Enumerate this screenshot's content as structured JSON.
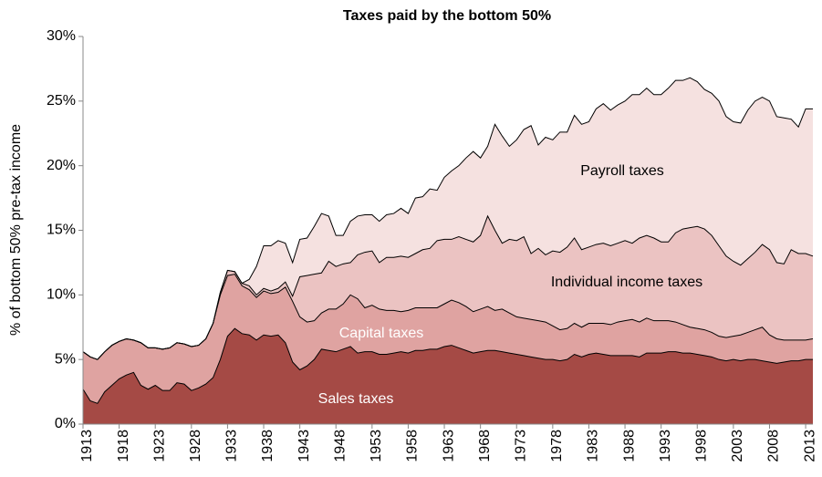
{
  "chart_data": {
    "type": "stacked_area",
    "title": "Taxes paid by the bottom 50%",
    "y_label": "% of bottom 50% pre-tax income",
    "x": [
      1913,
      1914,
      1915,
      1916,
      1917,
      1918,
      1919,
      1920,
      1921,
      1922,
      1923,
      1924,
      1925,
      1926,
      1927,
      1928,
      1929,
      1930,
      1931,
      1932,
      1933,
      1934,
      1935,
      1936,
      1937,
      1938,
      1939,
      1940,
      1941,
      1942,
      1943,
      1944,
      1945,
      1946,
      1947,
      1948,
      1949,
      1950,
      1951,
      1952,
      1953,
      1954,
      1955,
      1956,
      1957,
      1958,
      1959,
      1960,
      1961,
      1962,
      1963,
      1964,
      1965,
      1966,
      1967,
      1968,
      1969,
      1970,
      1971,
      1972,
      1973,
      1974,
      1975,
      1976,
      1977,
      1978,
      1979,
      1980,
      1981,
      1982,
      1983,
      1984,
      1985,
      1986,
      1987,
      1988,
      1989,
      1990,
      1991,
      1992,
      1993,
      1994,
      1995,
      1996,
      1997,
      1998,
      1999,
      2000,
      2001,
      2002,
      2003,
      2004,
      2005,
      2006,
      2007,
      2008,
      2009,
      2010,
      2011,
      2012,
      2013,
      2014
    ],
    "xlim": [
      1913,
      2014
    ],
    "xticks": [
      1913,
      1918,
      1923,
      1928,
      1933,
      1938,
      1943,
      1948,
      1953,
      1958,
      1963,
      1968,
      1973,
      1978,
      1983,
      1988,
      1993,
      1998,
      2003,
      2008,
      2013
    ],
    "ylim": [
      0,
      30
    ],
    "yticks": [
      {
        "value": 0,
        "label": "0%"
      },
      {
        "value": 5,
        "label": "5%"
      },
      {
        "value": 10,
        "label": "10%"
      },
      {
        "value": 15,
        "label": "15%"
      },
      {
        "value": 20,
        "label": "20%"
      },
      {
        "value": 25,
        "label": "25%"
      },
      {
        "value": 30,
        "label": "30%"
      }
    ],
    "grid": false,
    "series": [
      {
        "name": "Sales taxes",
        "color": "#a54a45",
        "label_color": "#ffffff",
        "values": [
          2.7,
          1.8,
          1.6,
          2.5,
          3.0,
          3.5,
          3.8,
          4.0,
          3.0,
          2.7,
          3.0,
          2.6,
          2.6,
          3.2,
          3.1,
          2.6,
          2.8,
          3.1,
          3.6,
          5.0,
          6.8,
          7.4,
          7.0,
          6.9,
          6.5,
          6.9,
          6.8,
          6.9,
          6.3,
          4.8,
          4.2,
          4.5,
          5.0,
          5.8,
          5.7,
          5.6,
          5.8,
          6.0,
          5.5,
          5.6,
          5.6,
          5.4,
          5.4,
          5.5,
          5.6,
          5.5,
          5.7,
          5.7,
          5.8,
          5.8,
          6.0,
          6.1,
          5.9,
          5.7,
          5.5,
          5.6,
          5.7,
          5.7,
          5.6,
          5.5,
          5.4,
          5.3,
          5.2,
          5.1,
          5.0,
          5.0,
          4.9,
          5.0,
          5.4,
          5.2,
          5.4,
          5.5,
          5.4,
          5.3,
          5.3,
          5.3,
          5.3,
          5.2,
          5.5,
          5.5,
          5.5,
          5.6,
          5.6,
          5.5,
          5.5,
          5.4,
          5.3,
          5.2,
          5.0,
          4.9,
          5.0,
          4.9,
          5.0,
          5.0,
          4.9,
          4.8,
          4.7,
          4.8,
          4.9,
          4.9,
          5.0,
          5.0
        ]
      },
      {
        "name": "Capital taxes",
        "color": "#dfa3a1",
        "label_color": "#ffffff",
        "values": [
          2.9,
          3.4,
          3.4,
          3.1,
          3.1,
          2.9,
          2.8,
          2.5,
          3.3,
          3.2,
          2.9,
          3.2,
          3.3,
          3.1,
          3.1,
          3.4,
          3.3,
          3.5,
          4.2,
          5.0,
          4.7,
          4.2,
          3.7,
          3.5,
          3.3,
          3.4,
          3.3,
          3.3,
          4.3,
          4.7,
          4.1,
          3.4,
          3.0,
          2.8,
          3.2,
          3.3,
          3.5,
          4.0,
          4.2,
          3.4,
          3.6,
          3.5,
          3.4,
          3.3,
          3.1,
          3.3,
          3.3,
          3.3,
          3.2,
          3.2,
          3.3,
          3.5,
          3.5,
          3.4,
          3.2,
          3.3,
          3.4,
          3.1,
          3.3,
          3.1,
          2.9,
          2.9,
          2.9,
          2.9,
          2.9,
          2.6,
          2.4,
          2.4,
          2.4,
          2.3,
          2.4,
          2.3,
          2.4,
          2.4,
          2.6,
          2.7,
          2.8,
          2.7,
          2.7,
          2.5,
          2.5,
          2.4,
          2.3,
          2.2,
          2.0,
          2.0,
          2.0,
          1.9,
          1.8,
          1.8,
          1.8,
          2.0,
          2.1,
          2.3,
          2.6,
          2.1,
          1.9,
          1.7,
          1.6,
          1.6,
          1.5,
          1.6
        ]
      },
      {
        "name": "Individual income taxes",
        "color": "#ebc3c2",
        "label_color": "#000000",
        "values": [
          0,
          0,
          0,
          0,
          0,
          0,
          0,
          0,
          0,
          0,
          0,
          0,
          0,
          0,
          0,
          0,
          0,
          0,
          0,
          0.2,
          0.4,
          0.2,
          0.2,
          0.3,
          0.2,
          0.2,
          0.2,
          0.3,
          0.4,
          0.4,
          3.1,
          3.6,
          3.6,
          3.1,
          3.7,
          3.3,
          3.1,
          2.5,
          3.4,
          4.3,
          4.2,
          3.6,
          4.1,
          4.1,
          4.3,
          4.1,
          4.2,
          4.5,
          4.6,
          5.2,
          5.0,
          4.7,
          5.1,
          5.2,
          5.4,
          5.7,
          7.0,
          6.2,
          5.1,
          5.7,
          5.9,
          6.3,
          5.1,
          5.6,
          5.2,
          5.8,
          6.0,
          6.3,
          6.6,
          6.0,
          5.9,
          6.1,
          6.2,
          6.1,
          6.1,
          6.2,
          5.9,
          6.5,
          6.4,
          6.4,
          6.1,
          6.1,
          6.9,
          7.4,
          7.7,
          7.9,
          7.8,
          7.5,
          7.0,
          6.3,
          5.8,
          5.4,
          5.7,
          6.0,
          6.4,
          6.6,
          5.9,
          5.9,
          7.0,
          6.7,
          6.7,
          6.4
        ]
      },
      {
        "name": "Payroll taxes",
        "color": "#f5e1e0",
        "label_color": "#000000",
        "values": [
          0,
          0,
          0,
          0,
          0,
          0,
          0,
          0,
          0,
          0,
          0,
          0,
          0,
          0,
          0,
          0,
          0,
          0,
          0,
          0,
          0,
          0,
          0,
          0.5,
          2.2,
          3.3,
          3.5,
          3.7,
          3.0,
          2.6,
          2.9,
          2.9,
          3.7,
          4.6,
          3.5,
          2.4,
          2.2,
          3.2,
          3.0,
          2.9,
          2.8,
          3.2,
          3.3,
          3.4,
          3.7,
          3.4,
          4.3,
          4.1,
          4.6,
          3.9,
          4.8,
          5.3,
          5.5,
          6.3,
          7.0,
          6.0,
          5.4,
          8.2,
          8.3,
          7.2,
          7.8,
          8.3,
          9.9,
          8.0,
          9.1,
          8.6,
          9.3,
          8.9,
          9.5,
          9.7,
          9.7,
          10.5,
          10.8,
          10.5,
          10.7,
          10.8,
          11.5,
          11.1,
          11.4,
          11.1,
          11.4,
          11.9,
          11.8,
          11.5,
          11.6,
          11.2,
          10.8,
          11.0,
          11.2,
          10.8,
          10.8,
          11.0,
          11.5,
          11.7,
          11.4,
          11.5,
          11.3,
          11.3,
          10.1,
          9.8,
          11.2,
          11.4
        ]
      }
    ]
  }
}
